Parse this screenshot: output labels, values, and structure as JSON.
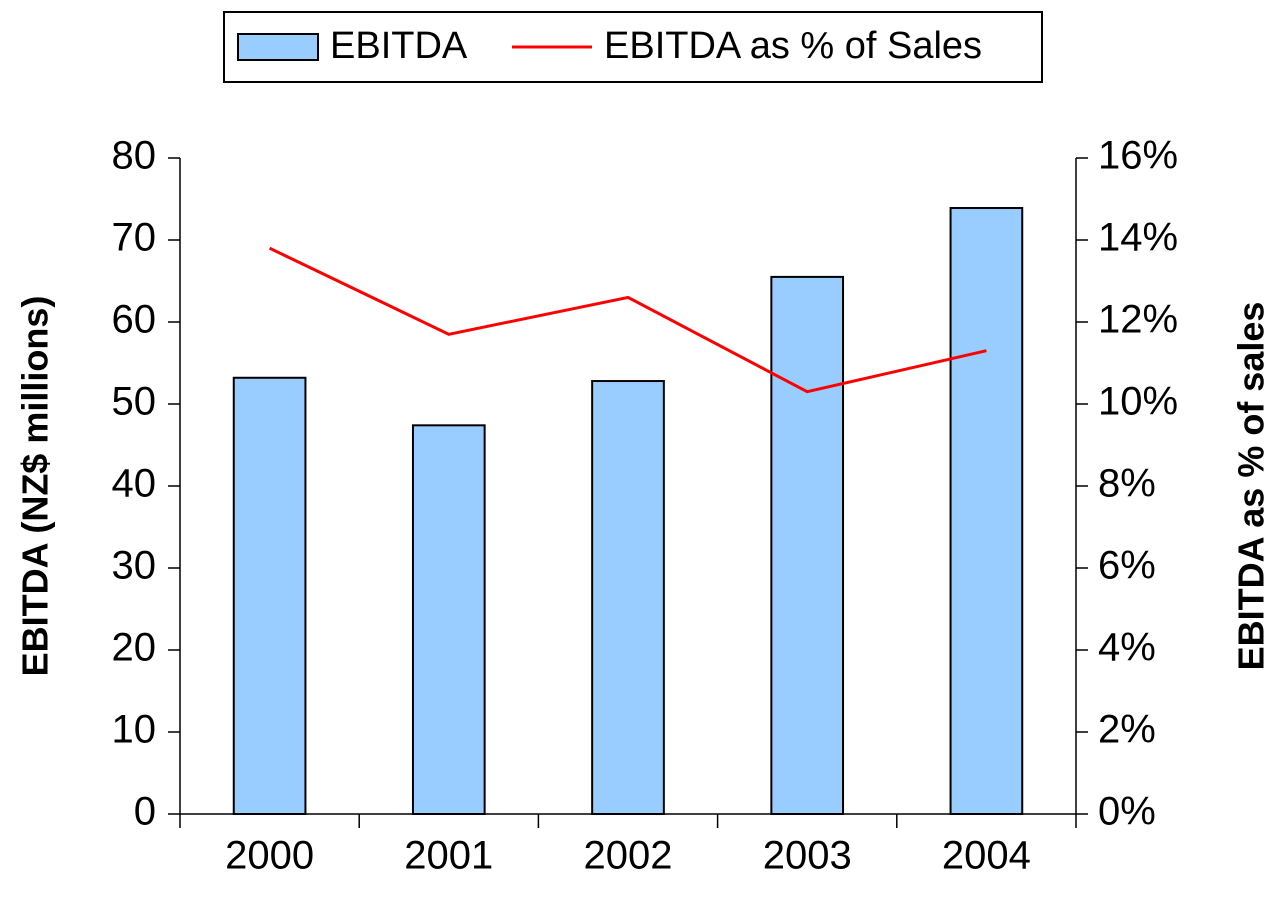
{
  "chart_data": {
    "type": "bar",
    "categories": [
      "2000",
      "2001",
      "2002",
      "2003",
      "2004"
    ],
    "series": [
      {
        "name": "EBITDA",
        "type": "bar",
        "color": "#99ccff",
        "values": [
          53.2,
          47.4,
          52.8,
          65.5,
          73.9
        ]
      },
      {
        "name": "EBITDA as % of Sales",
        "type": "line",
        "axis": "y2",
        "color": "#ff0000",
        "values": [
          13.8,
          11.7,
          12.6,
          10.3,
          11.3
        ]
      }
    ],
    "y_label": "EBITDA (NZ$ millions)",
    "y2_label": "EBITDA as % of sales",
    "ylim": [
      0,
      80
    ],
    "yticks": [
      0,
      10,
      20,
      30,
      40,
      50,
      60,
      70,
      80
    ],
    "y2lim": [
      0,
      16
    ],
    "y2ticks": [
      {
        "value": 0,
        "label": "0%"
      },
      {
        "value": 2,
        "label": "2%"
      },
      {
        "value": 4,
        "label": "4%"
      },
      {
        "value": 6,
        "label": "6%"
      },
      {
        "value": 8,
        "label": "8%"
      },
      {
        "value": 10,
        "label": "10%"
      },
      {
        "value": 12,
        "label": "12%"
      },
      {
        "value": 14,
        "label": "14%"
      },
      {
        "value": 16,
        "label": "16%"
      }
    ],
    "legend": "top",
    "grid": false
  }
}
